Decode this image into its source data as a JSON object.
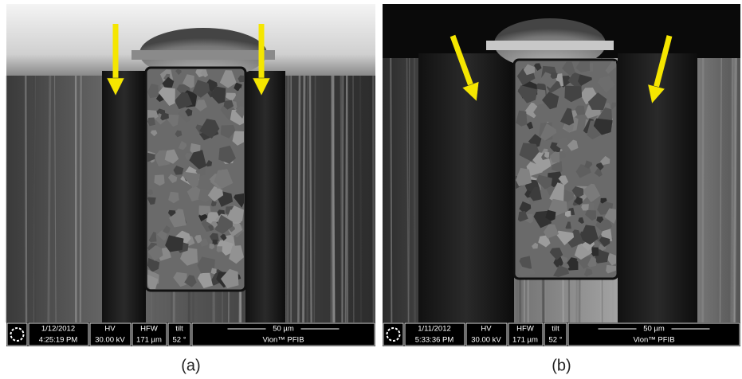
{
  "panels": [
    {
      "label": "(a)",
      "date": "1/12/2012",
      "time": "4:25:19 PM",
      "hv_label": "HV",
      "hv": "30.00 kV",
      "hfw_label": "HFW",
      "hfw": "171 µm",
      "tilt_label": "tilt",
      "tilt": "52 °",
      "scale": "50 µm",
      "instrument": "Vion™ PFIB"
    },
    {
      "label": "(b)",
      "date": "1/11/2012",
      "time": "5:33:36 PM",
      "hv_label": "HV",
      "hv": "30.00 kV",
      "hfw_label": "HFW",
      "hfw": "171 µm",
      "tilt_label": "tilt",
      "tilt": "52 °",
      "scale": "50 µm",
      "instrument": "Vion™ PFIB"
    }
  ]
}
